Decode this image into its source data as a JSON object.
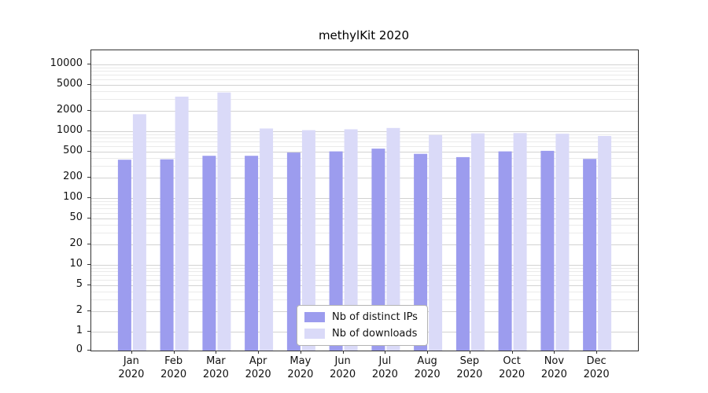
{
  "title": "methylKit 2020",
  "chart_data": {
    "type": "bar",
    "title": "methylKit 2020",
    "xlabel": "",
    "ylabel": "",
    "yscale": "log",
    "grid": true,
    "legend_position": "bottom-center-inside",
    "ylim": [
      0,
      16000
    ],
    "yticks": [
      0,
      1,
      2,
      5,
      10,
      20,
      50,
      100,
      200,
      500,
      1000,
      2000,
      5000,
      10000
    ],
    "categories": [
      "Jan 2020",
      "Feb 2020",
      "Mar 2020",
      "Apr 2020",
      "May 2020",
      "Jun 2020",
      "Jul 2020",
      "Aug 2020",
      "Sep 2020",
      "Oct 2020",
      "Nov 2020",
      "Dec 2020"
    ],
    "series": [
      {
        "name": "Nb of distinct IPs",
        "color": "#9c9cee",
        "values": [
          375,
          380,
          430,
          430,
          480,
          500,
          550,
          460,
          410,
          500,
          510,
          385
        ]
      },
      {
        "name": "Nb of downloads",
        "color": "#dadaf8",
        "values": [
          1800,
          3300,
          3800,
          1100,
          1040,
          1070,
          1120,
          880,
          930,
          940,
          920,
          850
        ]
      }
    ]
  },
  "colors": {
    "distinct_ips": "#9c9cee",
    "downloads": "#dadaf8",
    "grid_major": "#d2d2d2",
    "grid_minor": "#eaeaea"
  }
}
